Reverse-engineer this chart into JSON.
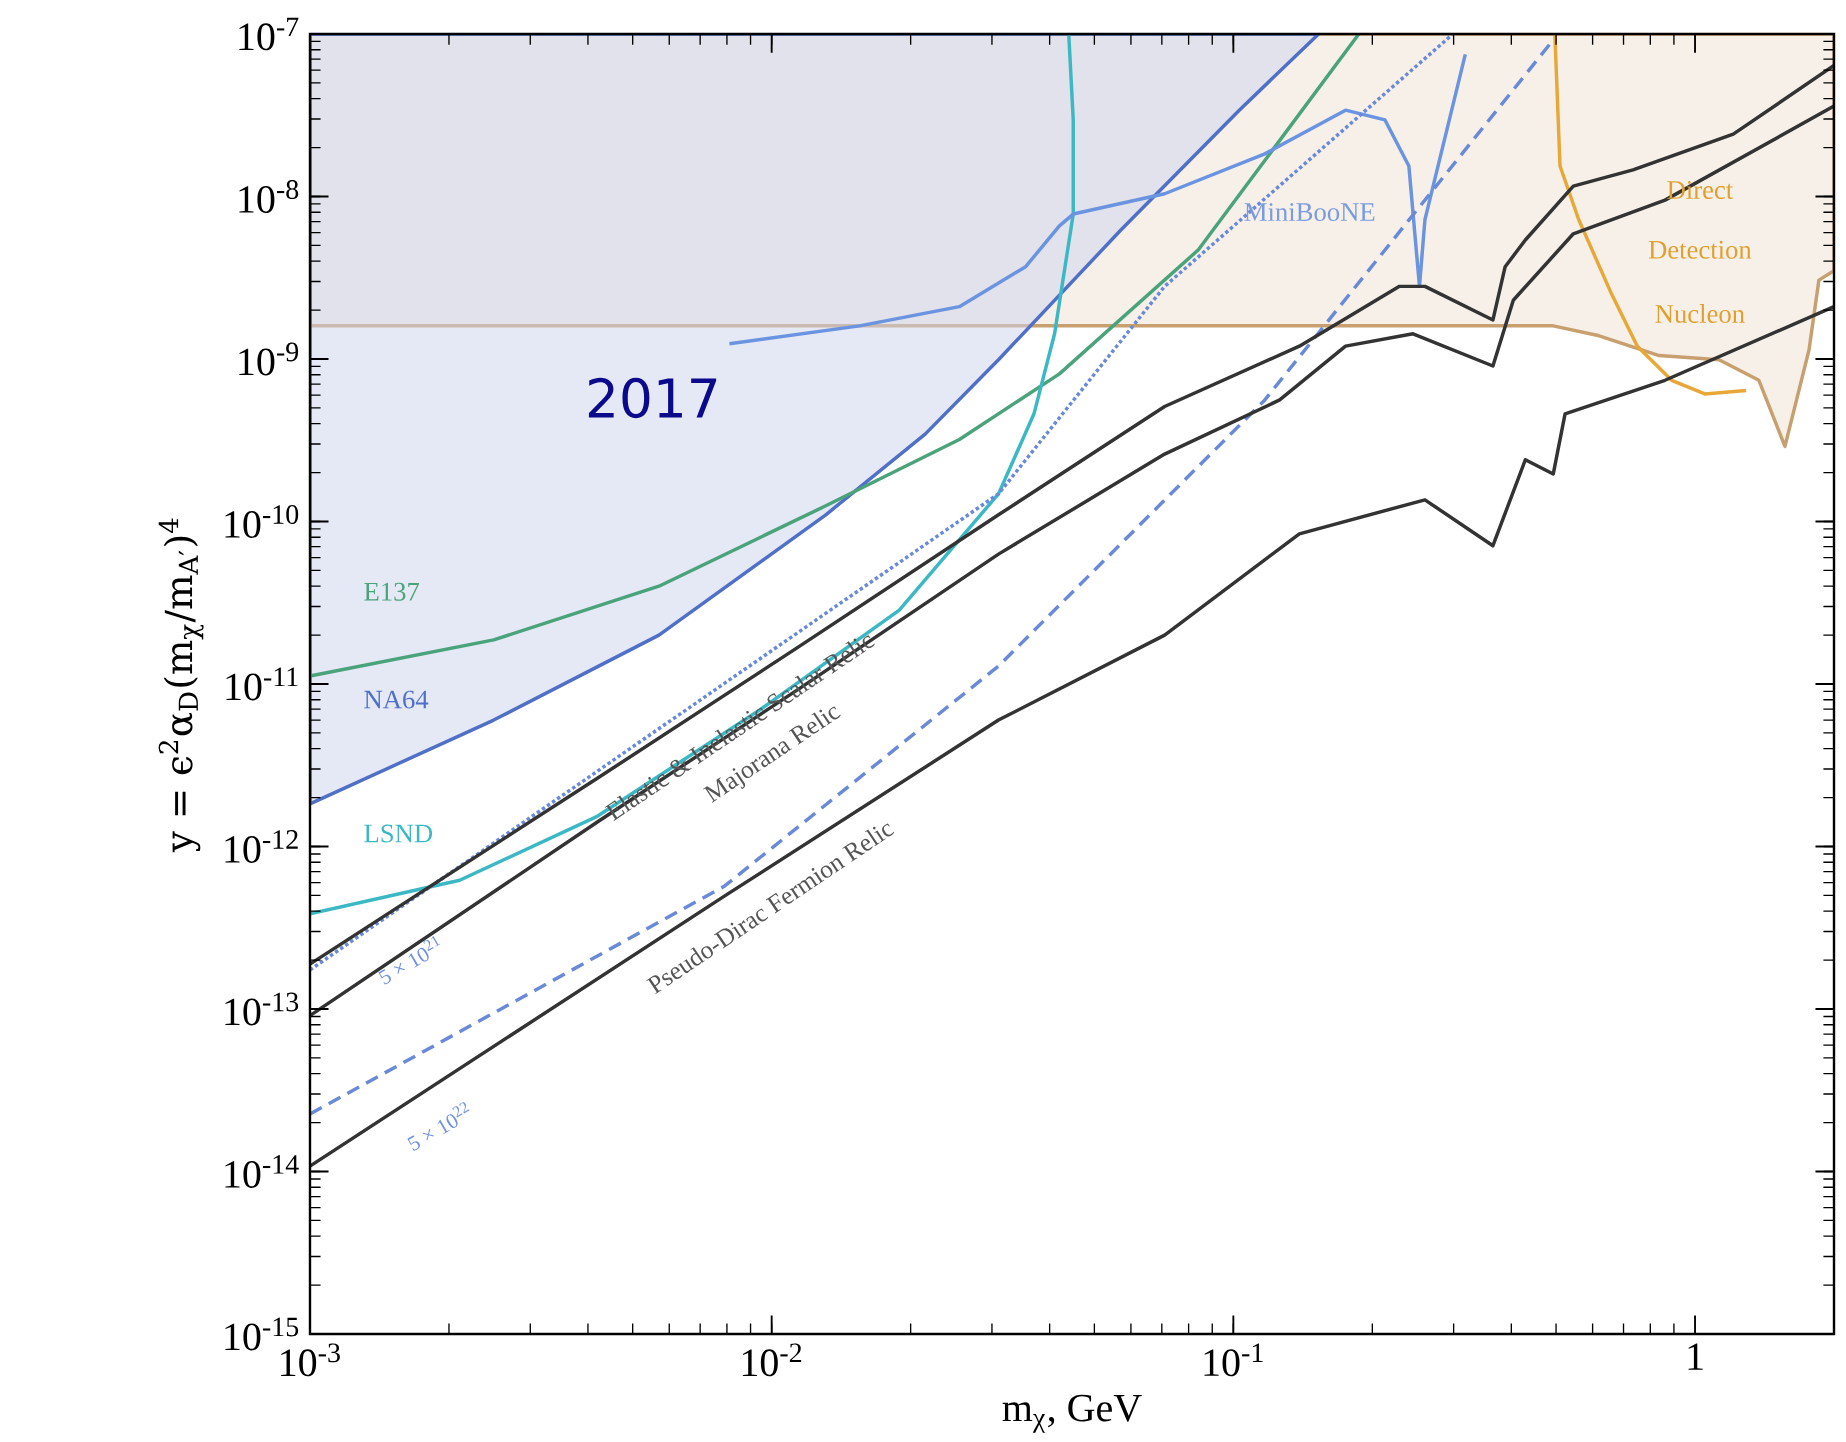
{
  "chart_data": {
    "type": "line",
    "log": "xy",
    "xlabel": "m$_{χ}$, GeV",
    "ylabel": "y = ϵ$^{2}$α$_{D}$(m$_{χ}$/m$_{A′}$)$^{4}$",
    "xlim": [
      0.001,
      2
    ],
    "ylim": [
      1e-15,
      1e-07
    ],
    "xticks": [
      {
        "value": 0.001,
        "label": "10$^{-3}$"
      },
      {
        "value": 0.01,
        "label": "10$^{-2}$"
      },
      {
        "value": 0.1,
        "label": "10$^{-1}$"
      },
      1
    ],
    "yticks": [
      {
        "value": 1e-15,
        "label": "10$^{-15}$"
      },
      {
        "value": 1e-14,
        "label": "10$^{-14}$"
      },
      {
        "value": 1e-13,
        "label": "10$^{-13}$"
      },
      {
        "value": 1e-12,
        "label": "10$^{-12}$"
      },
      {
        "value": 1e-11,
        "label": "10$^{-11}$"
      },
      {
        "value": 1e-10,
        "label": "10$^{-10}$"
      },
      {
        "value": 1e-09,
        "label": "10$^{-9}$"
      },
      {
        "value": 1e-08,
        "label": "10$^{-8}$"
      },
      {
        "value": 1e-07,
        "label": "10$^{-7}$"
      }
    ],
    "series": [
      {
        "type": "area",
        "color": "#c8a070",
        "line_style": "solid",
        "x": [
          0.001,
          0.001,
          0.493,
          0.62,
          0.836,
          1.127,
          1.375,
          1.566,
          1.766,
          1.855,
          2,
          2
        ],
        "values": [
          1e-07,
          1.6e-09,
          1.6e-09,
          1.39e-09,
          1.05e-09,
          9.9e-10,
          7.4e-10,
          2.9e-10,
          1.14e-09,
          3.06e-09,
          3.5e-09,
          1e-07
        ]
      },
      {
        "type": "area",
        "color": "#5070c8",
        "line_style": "solid",
        "x": [
          0.001,
          0.001,
          0.0025,
          0.0057,
          0.0131,
          0.0215,
          0.031,
          0.057,
          0.103,
          0.153
        ],
        "values": [
          1e-07,
          1.83e-12,
          6e-12,
          2e-11,
          1.1e-10,
          3.45e-10,
          9.9e-10,
          6.2e-09,
          3.4e-08,
          1e-07
        ]
      },
      {
        "color": "#e8a838",
        "line_style": "solid",
        "x": [
          0.497,
          0.51,
          0.56,
          0.66,
          0.75,
          0.89,
          1.05,
          1.29
        ],
        "values": [
          1e-07,
          1.54e-08,
          7.2e-09,
          2.5e-09,
          1.2e-09,
          7.4e-10,
          6.1e-10,
          6.4e-10
        ]
      },
      {
        "color": "#4aa37a",
        "line_style": "solid",
        "x": [
          0.001,
          0.0025,
          0.0057,
          0.0131,
          0.0255,
          0.042,
          0.084,
          0.187
        ],
        "values": [
          1.12e-11,
          1.87e-11,
          4e-11,
          1.25e-10,
          3.2e-10,
          8.1e-10,
          4.7e-09,
          1e-07
        ]
      },
      {
        "color": "#3bb8c4",
        "line_style": "solid",
        "x": [
          0.001,
          0.00211,
          0.0042,
          0.0094,
          0.0189,
          0.031,
          0.037,
          0.041,
          0.045,
          0.045,
          0.044
        ],
        "values": [
          3.85e-13,
          6.2e-13,
          1.54e-12,
          6.9e-12,
          2.85e-11,
          1.48e-10,
          4.6e-10,
          1.43e-09,
          7.8e-09,
          2.96e-08,
          1e-07
        ]
      },
      {
        "color": "#6a93e0",
        "line_style": "solid",
        "x": [
          0.0081,
          0.0155,
          0.0255,
          0.0355,
          0.042,
          0.045,
          0.071,
          0.117,
          0.175,
          0.213,
          0.24,
          0.253,
          0.26,
          0.318
        ],
        "values": [
          1.24e-09,
          1.6e-09,
          2.1e-09,
          3.7e-09,
          6.6e-09,
          7.8e-09,
          1.04e-08,
          1.83e-08,
          3.4e-08,
          2.96e-08,
          1.54e-08,
          2.8e-09,
          7.2e-09,
          7.5e-08
        ]
      },
      {
        "color": "#6a8ad8",
        "line_style": "dotted",
        "x": [
          0.001,
          0.031,
          0.071,
          0.299
        ],
        "values": [
          1.74e-13,
          1.48e-10,
          2.8e-09,
          1e-07
        ]
      },
      {
        "color": "#6a8ad8",
        "line_style": "dashed",
        "x": [
          0.001,
          0.0079,
          0.031,
          0.117,
          0.493
        ],
        "values": [
          2.26e-14,
          5.7e-13,
          1.29e-11,
          5.6e-10,
          9.2e-08
        ]
      },
      {
        "color": "#333333",
        "line_style": "solid",
        "x": [
          0.001,
          0.0042,
          0.0115,
          0.031,
          0.071,
          0.139,
          0.229,
          0.26,
          0.365,
          0.388,
          0.429,
          0.545,
          0.734,
          1.21,
          2
        ],
        "values": [
          1.89e-13,
          2.64e-12,
          1.71e-11,
          1.1e-10,
          5.1e-10,
          1.2e-09,
          2.8e-09,
          2.8e-09,
          1.74e-09,
          3.7e-09,
          5.4e-09,
          1.16e-08,
          1.46e-08,
          2.42e-08,
          6.4e-08
        ]
      },
      {
        "color": "#333333",
        "line_style": "solid",
        "x": [
          0.001,
          0.0042,
          0.0115,
          0.031,
          0.071,
          0.126,
          0.175,
          0.245,
          0.365,
          0.404,
          0.545,
          0.861,
          2
        ],
        "values": [
          9.1e-14,
          1.42e-12,
          9.4e-12,
          6.3e-11,
          2.6e-10,
          5.6e-10,
          1.2e-09,
          1.43e-09,
          9.06e-10,
          2.3e-09,
          5.9e-09,
          9.5e-09,
          3.6e-08
        ]
      },
      {
        "color": "#333333",
        "line_style": "solid",
        "x": [
          0.001,
          0.0079,
          0.031,
          0.071,
          0.139,
          0.26,
          0.365,
          0.429,
          0.493,
          0.523,
          0.861,
          2
        ],
        "values": [
          1.08e-14,
          4.95e-13,
          6e-12,
          2e-11,
          8.4e-11,
          1.36e-10,
          7.1e-11,
          2.4e-10,
          1.96e-10,
          4.6e-10,
          7.4e-10,
          2.1e-09
        ]
      }
    ],
    "annotations": [
      "2017",
      "E137",
      "NA64",
      "LSND",
      "MiniBooNE",
      "Direct",
      "Detection",
      "Nucleon",
      "Elastic & Inelastic Scalar Relic",
      "Majorana Relic",
      "Pseudo-Dirac Fermion Relic",
      "5 × 10$^{21}$",
      "5 × 10$^{22}$"
    ]
  }
}
